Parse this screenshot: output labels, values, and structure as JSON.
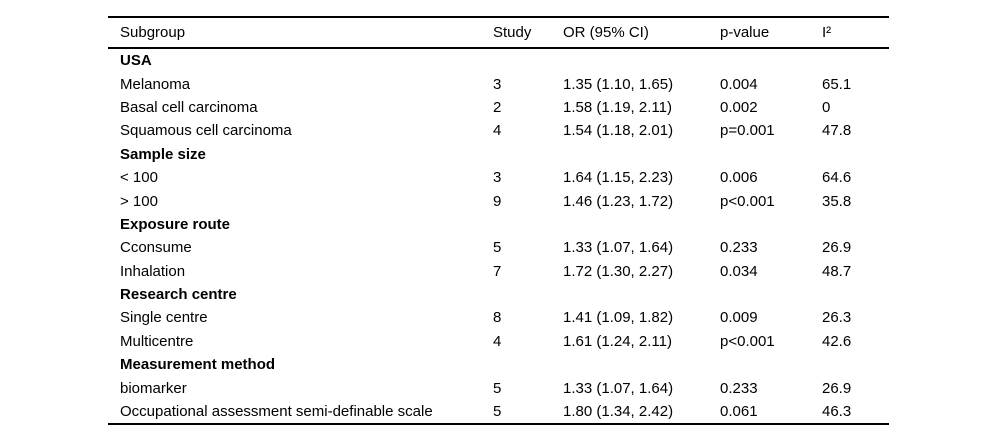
{
  "table": {
    "columns": [
      "Subgroup",
      "Study",
      "OR (95% CI)",
      "p-value",
      "I²"
    ],
    "rows": [
      {
        "bold": true,
        "cells": [
          "USA",
          "",
          "",
          "",
          ""
        ]
      },
      {
        "bold": false,
        "cells": [
          "Melanoma",
          "3",
          "1.35 (1.10, 1.65)",
          "0.004",
          "65.1"
        ]
      },
      {
        "bold": false,
        "cells": [
          "Basal cell carcinoma",
          "2",
          "1.58 (1.19, 2.11)",
          "0.002",
          "0"
        ]
      },
      {
        "bold": false,
        "cells": [
          "Squamous cell carcinoma",
          "4",
          "1.54 (1.18, 2.01)",
          "p=0.001",
          "47.8"
        ]
      },
      {
        "bold": true,
        "cells": [
          "Sample size",
          "",
          "",
          "",
          ""
        ]
      },
      {
        "bold": false,
        "cells": [
          "< 100",
          "3",
          "1.64 (1.15, 2.23)",
          "0.006",
          "64.6"
        ]
      },
      {
        "bold": false,
        "cells": [
          "> 100",
          "9",
          "1.46 (1.23, 1.72)",
          "p<0.001",
          "35.8"
        ]
      },
      {
        "bold": true,
        "cells": [
          "Exposure route",
          "",
          "",
          "",
          ""
        ]
      },
      {
        "bold": false,
        "cells": [
          "Cconsume",
          "5",
          "1.33 (1.07, 1.64)",
          "0.233",
          "26.9"
        ]
      },
      {
        "bold": false,
        "cells": [
          "Inhalation",
          "7",
          "1.72 (1.30, 2.27)",
          "0.034",
          "48.7"
        ]
      },
      {
        "bold": true,
        "cells": [
          "Research centre",
          "",
          "",
          "",
          ""
        ]
      },
      {
        "bold": false,
        "cells": [
          "Single centre",
          "8",
          "1.41 (1.09, 1.82)",
          "0.009",
          "26.3"
        ]
      },
      {
        "bold": false,
        "cells": [
          "Multicentre",
          "4",
          "1.61 (1.24, 2.11)",
          "p<0.001",
          "42.6"
        ]
      },
      {
        "bold": true,
        "cells": [
          "Measurement method",
          "",
          "",
          "",
          ""
        ]
      },
      {
        "bold": false,
        "cells": [
          "biomarker",
          "5",
          "1.33 (1.07, 1.64)",
          "0.233",
          "26.9"
        ]
      },
      {
        "bold": false,
        "cells": [
          "Occupational assessment semi-definable scale",
          "5",
          "1.80 (1.34, 2.42)",
          "0.061",
          "46.3"
        ]
      }
    ]
  }
}
